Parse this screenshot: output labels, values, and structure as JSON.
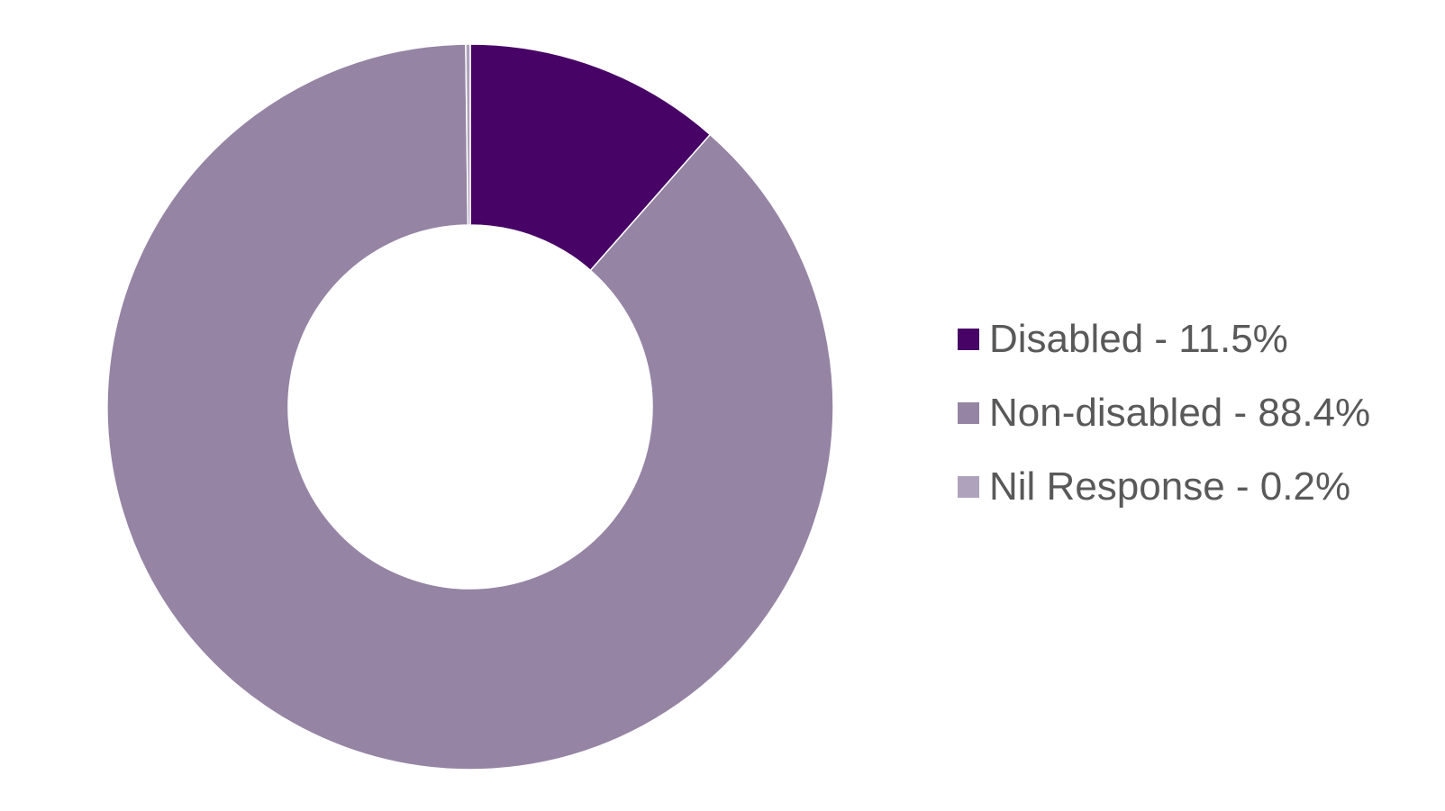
{
  "chart_data": {
    "type": "pie",
    "variant": "donut",
    "title": "",
    "legend_position": "right",
    "categories": [
      "Disabled",
      "Non-disabled",
      "Nil Response"
    ],
    "values": [
      11.5,
      88.4,
      0.2
    ],
    "unit": "%",
    "colors": [
      "#470466",
      "#9584A4",
      "#AFA2BD"
    ],
    "legend": [
      {
        "label": "Disabled - 11.5%",
        "color": "#470466"
      },
      {
        "label": "Non-disabled - 88.4%",
        "color": "#9584A4"
      },
      {
        "label": "Nil Response - 0.2%",
        "color": "#AFA2BD"
      }
    ]
  }
}
